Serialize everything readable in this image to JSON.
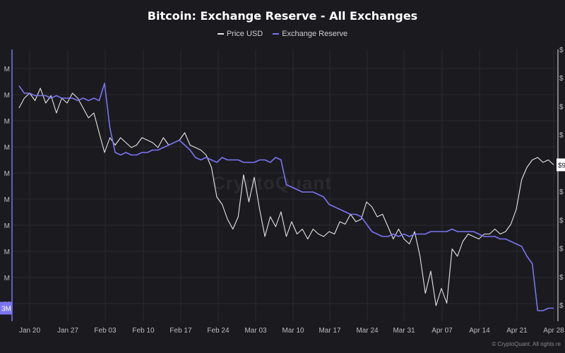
{
  "chart_data": {
    "type": "line",
    "title": "Bitcoin: Exchange Reserve - All Exchanges",
    "x_ticks": [
      "Jan 20",
      "Jan 27",
      "Feb 03",
      "Feb 10",
      "Feb 17",
      "Feb 24",
      "Mar 03",
      "Mar 10",
      "Mar 17",
      "Mar 24",
      "Mar 31",
      "Apr 07",
      "Apr 14",
      "Apr 21",
      "Apr 28"
    ],
    "left_axis_ticks": [
      "M",
      "M",
      "M",
      "M",
      "M",
      "M",
      "M",
      "M",
      "M",
      "M"
    ],
    "right_axis_ticks": [
      "$",
      "$",
      "$",
      "$",
      "$",
      "$",
      "$",
      "$",
      "$",
      "$"
    ],
    "left_current_label": "3M",
    "right_current_label": "$9",
    "legend_position": "top-center",
    "grid": true,
    "series": [
      {
        "name": "Price USD",
        "color": "#e6e6e6",
        "x": [
          "Jan 18",
          "Jan 19",
          "Jan 20",
          "Jan 21",
          "Jan 22",
          "Jan 23",
          "Jan 24",
          "Jan 25",
          "Jan 26",
          "Jan 27",
          "Jan 28",
          "Jan 29",
          "Jan 30",
          "Jan 31",
          "Feb 01",
          "Feb 02",
          "Feb 03",
          "Feb 04",
          "Feb 05",
          "Feb 06",
          "Feb 07",
          "Feb 08",
          "Feb 09",
          "Feb 10",
          "Feb 11",
          "Feb 12",
          "Feb 13",
          "Feb 14",
          "Feb 15",
          "Feb 16",
          "Feb 17",
          "Feb 18",
          "Feb 19",
          "Feb 20",
          "Feb 21",
          "Feb 22",
          "Feb 23",
          "Feb 24",
          "Feb 25",
          "Feb 26",
          "Feb 27",
          "Feb 28",
          "Mar 01",
          "Mar 02",
          "Mar 03",
          "Mar 04",
          "Mar 05",
          "Mar 06",
          "Mar 07",
          "Mar 08",
          "Mar 09",
          "Mar 10",
          "Mar 11",
          "Mar 12",
          "Mar 13",
          "Mar 14",
          "Mar 15",
          "Mar 16",
          "Mar 17",
          "Mar 18",
          "Mar 19",
          "Mar 20",
          "Mar 21",
          "Mar 22",
          "Mar 23",
          "Mar 24",
          "Mar 25",
          "Mar 26",
          "Mar 27",
          "Mar 28",
          "Mar 29",
          "Mar 30",
          "Mar 31",
          "Apr 01",
          "Apr 02",
          "Apr 03",
          "Apr 04",
          "Apr 05",
          "Apr 06",
          "Apr 07",
          "Apr 08",
          "Apr 09",
          "Apr 10",
          "Apr 11",
          "Apr 12",
          "Apr 13",
          "Apr 14",
          "Apr 15",
          "Apr 16",
          "Apr 17",
          "Apr 18",
          "Apr 19",
          "Apr 20",
          "Apr 21",
          "Apr 22",
          "Apr 23",
          "Apr 24",
          "Apr 25",
          "Apr 26",
          "Apr 27",
          "Apr 28"
        ],
        "values": [
          0.82,
          0.86,
          0.88,
          0.85,
          0.9,
          0.84,
          0.87,
          0.8,
          0.86,
          0.84,
          0.88,
          0.86,
          0.82,
          0.78,
          0.8,
          0.72,
          0.64,
          0.7,
          0.67,
          0.7,
          0.68,
          0.66,
          0.67,
          0.7,
          0.69,
          0.68,
          0.66,
          0.7,
          0.67,
          0.68,
          0.69,
          0.72,
          0.67,
          0.66,
          0.65,
          0.63,
          0.58,
          0.46,
          0.43,
          0.37,
          0.33,
          0.38,
          0.55,
          0.44,
          0.54,
          0.41,
          0.3,
          0.38,
          0.34,
          0.4,
          0.3,
          0.36,
          0.31,
          0.33,
          0.29,
          0.33,
          0.31,
          0.3,
          0.32,
          0.31,
          0.36,
          0.35,
          0.39,
          0.36,
          0.37,
          0.44,
          0.42,
          0.38,
          0.39,
          0.34,
          0.29,
          0.33,
          0.29,
          0.27,
          0.32,
          0.22,
          0.07,
          0.16,
          0.02,
          0.09,
          0.03,
          0.25,
          0.22,
          0.28,
          0.31,
          0.3,
          0.29,
          0.31,
          0.31,
          0.33,
          0.31,
          0.32,
          0.35,
          0.41,
          0.53,
          0.58,
          0.61,
          0.62,
          0.6,
          0.61,
          0.59
        ]
      },
      {
        "name": "Exchange Reserve",
        "color": "#7b74f2",
        "x": [
          "Jan 18",
          "Jan 19",
          "Jan 20",
          "Jan 21",
          "Jan 22",
          "Jan 23",
          "Jan 24",
          "Jan 25",
          "Jan 26",
          "Jan 27",
          "Jan 28",
          "Jan 29",
          "Jan 30",
          "Jan 31",
          "Feb 01",
          "Feb 02",
          "Feb 03",
          "Feb 04",
          "Feb 05",
          "Feb 06",
          "Feb 07",
          "Feb 08",
          "Feb 09",
          "Feb 10",
          "Feb 11",
          "Feb 12",
          "Feb 13",
          "Feb 14",
          "Feb 15",
          "Feb 16",
          "Feb 17",
          "Feb 18",
          "Feb 19",
          "Feb 20",
          "Feb 21",
          "Feb 22",
          "Feb 23",
          "Feb 24",
          "Feb 25",
          "Feb 26",
          "Feb 27",
          "Feb 28",
          "Mar 01",
          "Mar 02",
          "Mar 03",
          "Mar 04",
          "Mar 05",
          "Mar 06",
          "Mar 07",
          "Mar 08",
          "Mar 09",
          "Mar 10",
          "Mar 11",
          "Mar 12",
          "Mar 13",
          "Mar 14",
          "Mar 15",
          "Mar 16",
          "Mar 17",
          "Mar 18",
          "Mar 19",
          "Mar 20",
          "Mar 21",
          "Mar 22",
          "Mar 23",
          "Mar 24",
          "Mar 25",
          "Mar 26",
          "Mar 27",
          "Mar 28",
          "Mar 29",
          "Mar 30",
          "Mar 31",
          "Apr 01",
          "Apr 02",
          "Apr 03",
          "Apr 04",
          "Apr 05",
          "Apr 06",
          "Apr 07",
          "Apr 08",
          "Apr 09",
          "Apr 10",
          "Apr 11",
          "Apr 12",
          "Apr 13",
          "Apr 14",
          "Apr 15",
          "Apr 16",
          "Apr 17",
          "Apr 18",
          "Apr 19",
          "Apr 20",
          "Apr 21",
          "Apr 22",
          "Apr 23",
          "Apr 24",
          "Apr 25",
          "Apr 26",
          "Apr 27",
          "Apr 28"
        ],
        "values": [
          0.91,
          0.88,
          0.88,
          0.87,
          0.87,
          0.87,
          0.86,
          0.87,
          0.86,
          0.86,
          0.86,
          0.85,
          0.86,
          0.85,
          0.86,
          0.85,
          0.92,
          0.74,
          0.64,
          0.63,
          0.64,
          0.63,
          0.63,
          0.64,
          0.64,
          0.65,
          0.65,
          0.66,
          0.67,
          0.68,
          0.69,
          0.67,
          0.65,
          0.62,
          0.61,
          0.62,
          0.61,
          0.6,
          0.62,
          0.61,
          0.61,
          0.61,
          0.6,
          0.6,
          0.6,
          0.61,
          0.61,
          0.6,
          0.62,
          0.61,
          0.51,
          0.5,
          0.49,
          0.48,
          0.48,
          0.48,
          0.47,
          0.46,
          0.43,
          0.42,
          0.41,
          0.4,
          0.39,
          0.39,
          0.38,
          0.35,
          0.32,
          0.31,
          0.3,
          0.3,
          0.31,
          0.3,
          0.31,
          0.3,
          0.31,
          0.31,
          0.31,
          0.32,
          0.32,
          0.32,
          0.32,
          0.33,
          0.32,
          0.32,
          0.32,
          0.32,
          0.31,
          0.3,
          0.3,
          0.3,
          0.29,
          0.29,
          0.28,
          0.27,
          0.26,
          0.22,
          0.19,
          0.0,
          0.0,
          0.01,
          0.01
        ]
      }
    ]
  },
  "watermark": "CryptoQuant",
  "copyright": "© CryptoQuant. All rights re"
}
